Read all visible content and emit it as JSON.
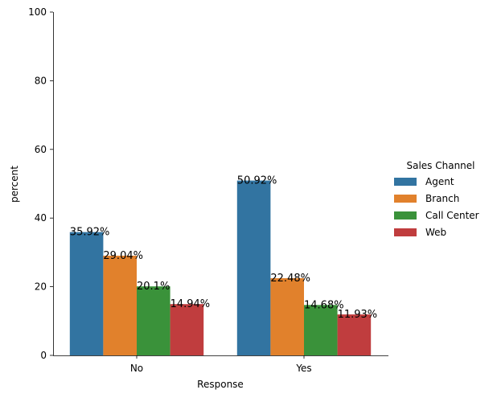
{
  "chart_data": {
    "type": "bar",
    "xlabel": "Response",
    "ylabel": "percent",
    "categories": [
      "No",
      "Yes"
    ],
    "ylim": [
      0,
      100
    ],
    "yticks": [
      0,
      20,
      40,
      60,
      80,
      100
    ],
    "grid": false,
    "legend": {
      "title": "Sales Channel",
      "placement": "right"
    },
    "series": [
      {
        "name": "Agent",
        "color": "#3274a1",
        "values": [
          35.92,
          50.92
        ],
        "labels": [
          "35.92%",
          "50.92%"
        ]
      },
      {
        "name": "Branch",
        "color": "#e1812c",
        "values": [
          29.04,
          22.48
        ],
        "labels": [
          "29.04%",
          "22.48%"
        ]
      },
      {
        "name": "Call Center",
        "color": "#3a923a",
        "values": [
          20.1,
          14.68
        ],
        "labels": [
          "20.1%",
          "14.68%"
        ]
      },
      {
        "name": "Web",
        "color": "#c03d3e",
        "values": [
          14.94,
          11.93
        ],
        "labels": [
          "14.94%",
          "11.93%"
        ]
      }
    ]
  }
}
